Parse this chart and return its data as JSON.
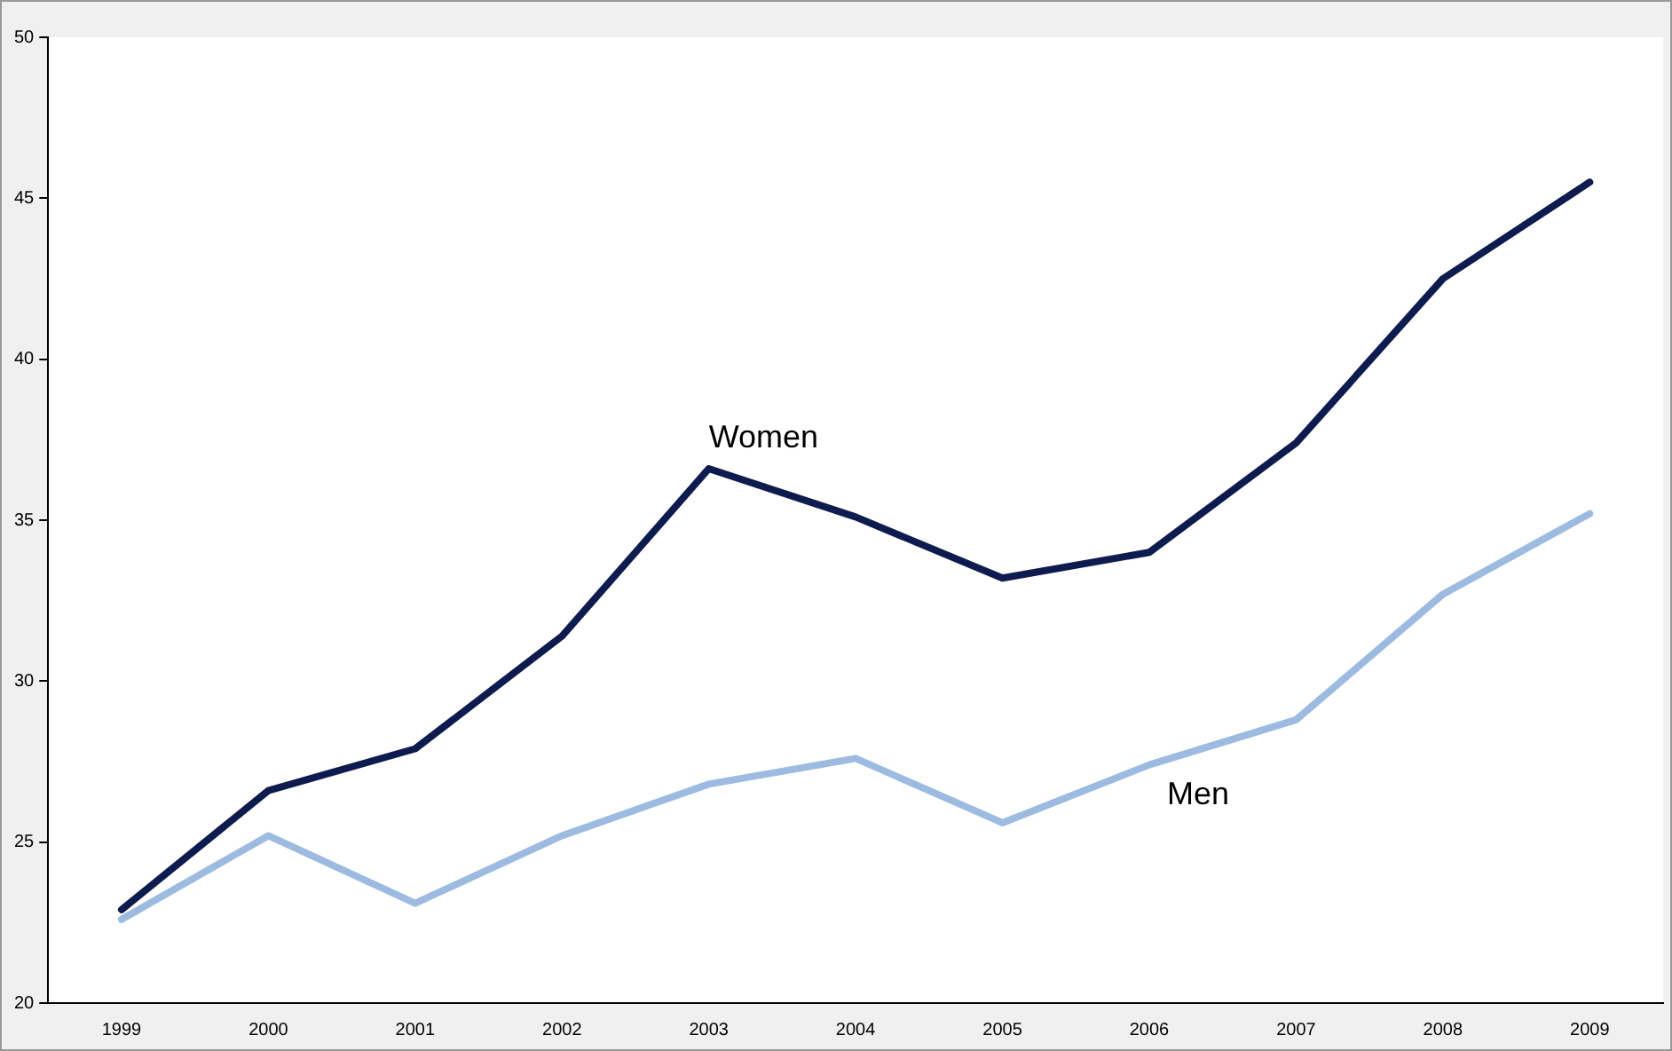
{
  "chart_data": {
    "type": "line",
    "categories": [
      "1999",
      "2000",
      "2001",
      "2002",
      "2003",
      "2004",
      "2005",
      "2006",
      "2007",
      "2008",
      "2009"
    ],
    "series": [
      {
        "name": "Women",
        "color": "#0d1b4f",
        "values": [
          22.9,
          26.6,
          27.9,
          31.4,
          36.6,
          35.1,
          33.2,
          34.0,
          37.4,
          42.5,
          45.5
        ]
      },
      {
        "name": "Men",
        "color": "#9dbbe0",
        "values": [
          22.6,
          25.2,
          23.1,
          25.2,
          26.8,
          27.6,
          25.6,
          27.4,
          28.8,
          32.7,
          35.2
        ]
      }
    ],
    "ylim": [
      20,
      50
    ],
    "yticks": [
      20,
      25,
      30,
      35,
      40,
      45,
      50
    ],
    "grid": false,
    "legend": false,
    "marker": "none",
    "line_style": "solid"
  }
}
